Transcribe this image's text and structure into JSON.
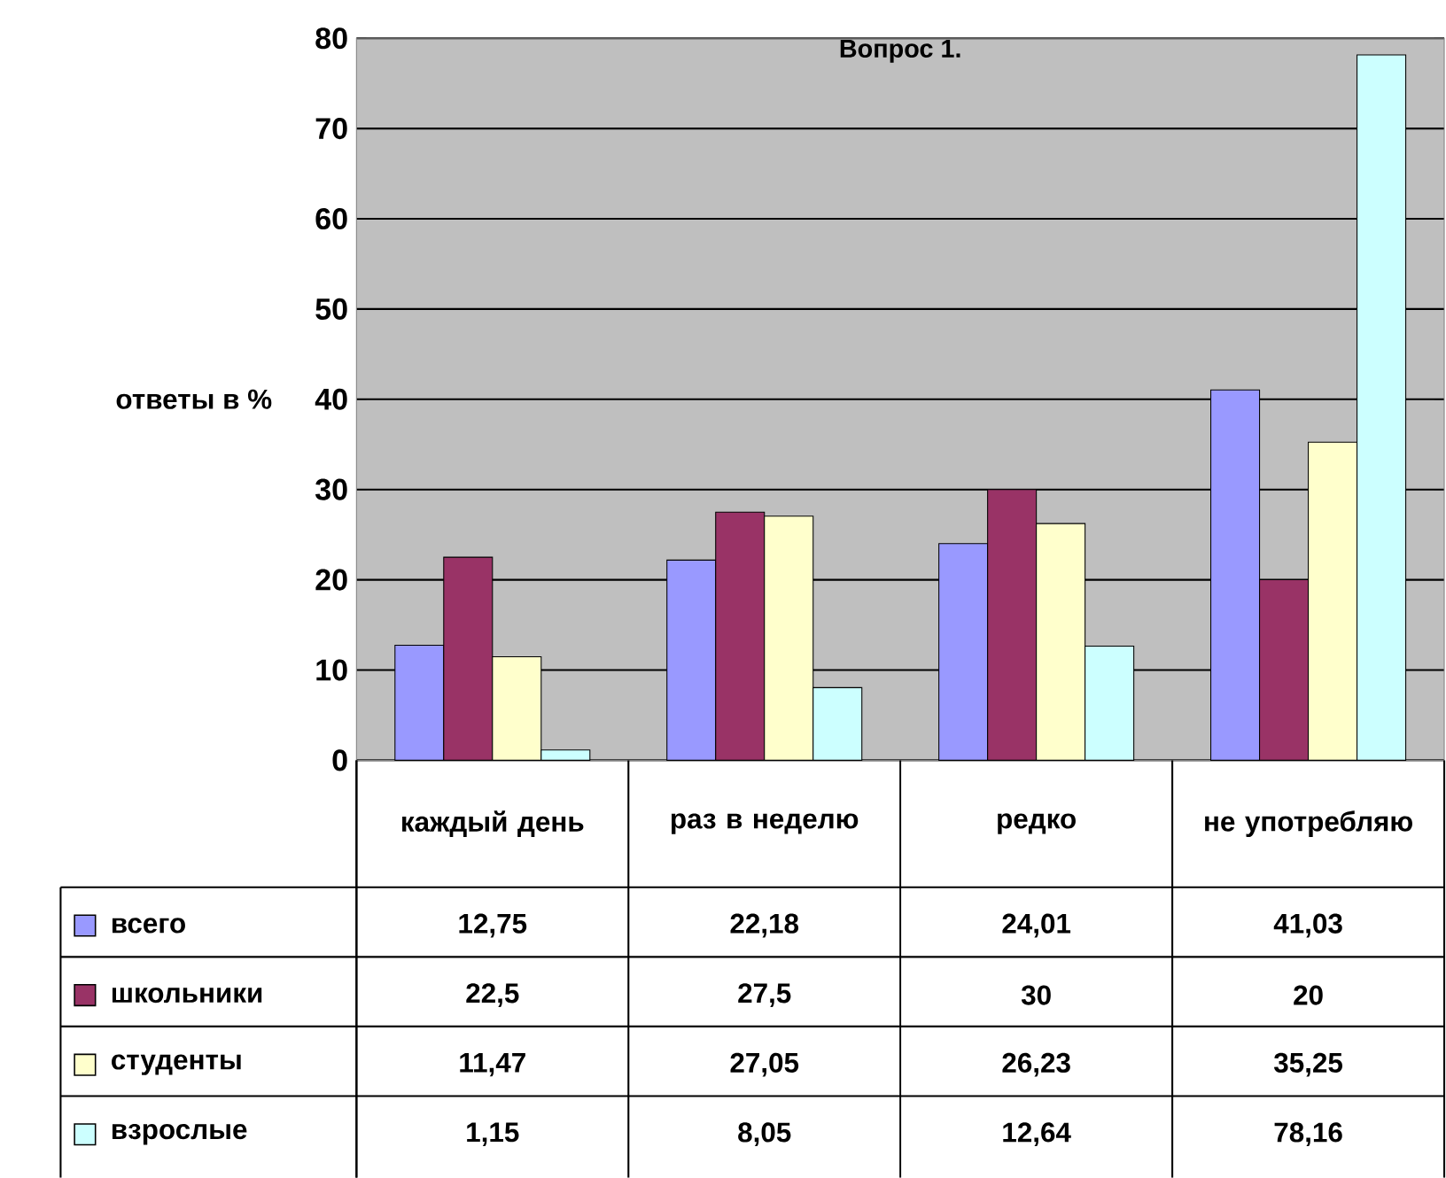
{
  "chart_data": {
    "type": "bar",
    "title": "Вопрос 1.",
    "ylabel": "ответы в %",
    "categories": [
      "каждый день",
      "раз в неделю",
      "редко",
      "не употребляю"
    ],
    "series": [
      {
        "name": "всего",
        "color": "#9999ff",
        "values": [
          12.75,
          22.18,
          24.01,
          41.03
        ],
        "value_labels": [
          "12,75",
          "22,18",
          "24,01",
          "41,03"
        ]
      },
      {
        "name": "школьники",
        "color": "#993366",
        "values": [
          22.5,
          27.5,
          30,
          20
        ],
        "value_labels": [
          "22,5",
          "27,5",
          "30",
          "20"
        ]
      },
      {
        "name": "студенты",
        "color": "#ffffcc",
        "values": [
          11.47,
          27.05,
          26.23,
          35.25
        ],
        "value_labels": [
          "11,47",
          "27,05",
          "26,23",
          "35,25"
        ]
      },
      {
        "name": "взрослые",
        "color": "#ccffff",
        "values": [
          1.15,
          8.05,
          12.64,
          78.16
        ],
        "value_labels": [
          "1,15",
          "8,05",
          "12,64",
          "78,16"
        ]
      }
    ],
    "ylim": [
      0,
      80
    ],
    "yticks": [
      0,
      10,
      20,
      30,
      40,
      50,
      60,
      70,
      80
    ],
    "grid": "y",
    "legend": "bottom"
  }
}
